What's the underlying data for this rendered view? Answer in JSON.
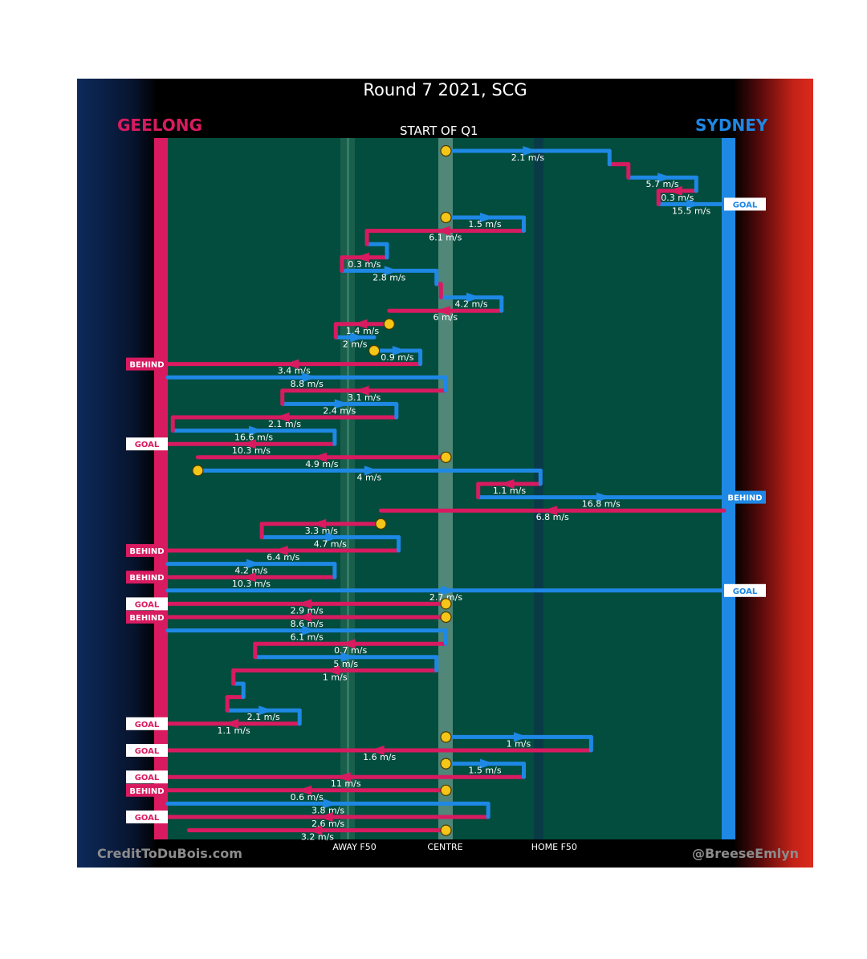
{
  "header": {
    "title": "Round 7 2021, SCG",
    "team_left": "GEELONG",
    "team_right": "SYDNEY",
    "quarter_label": "START OF Q1"
  },
  "footer": {
    "left": "CreditToDuBois.com",
    "right": "@BreeseEmlyn"
  },
  "colors": {
    "geelong": "#d81b60",
    "sydney": "#1e88e5",
    "field": "#034d3e",
    "centre_bounce": "#f5c518"
  },
  "chart_data": {
    "type": "line",
    "title": "Round 7 2021, SCG",
    "x_axis_labels": [
      "AWAY F50",
      "CENTRE",
      "HOME F50"
    ],
    "x_range": [
      0,
      1
    ],
    "y_direction": "chain index, top to bottom",
    "chains": [
      {
        "id": 1,
        "start_centre": true,
        "result": "GOAL",
        "result_team": "sydney",
        "segments": [
          {
            "team": "sydney",
            "from": 0.5,
            "to": 0.794,
            "speed": "2.1 m/s"
          },
          {
            "team": "geelong",
            "from": 0.794,
            "to": 0.828,
            "speed": ""
          },
          {
            "team": "sydney",
            "from": 0.828,
            "to": 0.95,
            "speed": "5.7 m/s"
          },
          {
            "team": "geelong",
            "from": 0.95,
            "to": 0.882,
            "speed": "0.3 m/s"
          },
          {
            "team": "sydney",
            "from": 0.882,
            "to": 1.0,
            "speed": "15.5 m/s"
          }
        ]
      },
      {
        "id": 2,
        "start_centre": true,
        "result": "",
        "result_team": "",
        "segments": [
          {
            "team": "sydney",
            "from": 0.5,
            "to": 0.64,
            "speed": "1.5 m/s"
          },
          {
            "team": "geelong",
            "from": 0.64,
            "to": 0.358,
            "speed": "6.1 m/s"
          },
          {
            "team": "sydney",
            "from": 0.358,
            "to": 0.394,
            "speed": ""
          },
          {
            "team": "geelong",
            "from": 0.394,
            "to": 0.313,
            "speed": "0.3 m/s"
          },
          {
            "team": "sydney",
            "from": 0.313,
            "to": 0.483,
            "speed": "2.8 m/s"
          },
          {
            "team": "geelong",
            "from": 0.483,
            "to": 0.491,
            "speed": ""
          },
          {
            "team": "sydney",
            "from": 0.491,
            "to": 0.6,
            "speed": "4.2 m/s"
          },
          {
            "team": "geelong",
            "from": 0.6,
            "to": 0.398,
            "speed": "6 m/s"
          }
        ]
      },
      {
        "id": 3,
        "start_centre": true,
        "result": "",
        "result_team": "",
        "segments": [
          {
            "team": "geelong",
            "from": 0.398,
            "to": 0.302,
            "speed": "1.4 m/s"
          },
          {
            "team": "sydney",
            "from": 0.302,
            "to": 0.371,
            "speed": "2 m/s"
          }
        ]
      },
      {
        "id": 4,
        "start_centre": true,
        "result": "BEHIND",
        "result_team": "geelong",
        "segments": [
          {
            "team": "sydney",
            "from": 0.371,
            "to": 0.454,
            "speed": "0.9 m/s"
          },
          {
            "team": "geelong",
            "from": 0.454,
            "to": 0.0,
            "speed": "3.4 m/s"
          }
        ]
      },
      {
        "id": 5,
        "start_centre": false,
        "result": "GOAL",
        "result_team": "geelong",
        "segments": [
          {
            "team": "sydney",
            "from": 0.0,
            "to": 0.5,
            "speed": "8.8 m/s"
          },
          {
            "team": "geelong",
            "from": 0.5,
            "to": 0.206,
            "speed": "3.1 m/s"
          },
          {
            "team": "sydney",
            "from": 0.206,
            "to": 0.411,
            "speed": "2.4 m/s"
          },
          {
            "team": "geelong",
            "from": 0.411,
            "to": 0.009,
            "speed": "2.1 m/s"
          },
          {
            "team": "sydney",
            "from": 0.009,
            "to": 0.3,
            "speed": "16.6 m/s"
          },
          {
            "team": "geelong",
            "from": 0.3,
            "to": 0.0,
            "speed": "10.3 m/s"
          }
        ]
      },
      {
        "id": 6,
        "start_centre": true,
        "result": "",
        "result_team": "",
        "segments": [
          {
            "team": "geelong",
            "from": 0.5,
            "to": 0.054,
            "speed": "4.9 m/s"
          }
        ]
      },
      {
        "id": 7,
        "start_centre": true,
        "result": "BEHIND",
        "result_team": "sydney",
        "segments": [
          {
            "team": "sydney",
            "from": 0.054,
            "to": 0.67,
            "speed": "4 m/s"
          },
          {
            "team": "geelong",
            "from": 0.67,
            "to": 0.558,
            "speed": "1.1 m/s"
          },
          {
            "team": "sydney",
            "from": 0.558,
            "to": 1.0,
            "speed": "16.8 m/s"
          }
        ]
      },
      {
        "id": 8,
        "start_centre": false,
        "result": "",
        "result_team": "",
        "segments": [
          {
            "team": "geelong",
            "from": 1.0,
            "to": 0.383,
            "speed": "6.8 m/s"
          }
        ]
      },
      {
        "id": 9,
        "start_centre": true,
        "result": "BEHIND",
        "result_team": "geelong",
        "segments": [
          {
            "team": "geelong",
            "from": 0.383,
            "to": 0.169,
            "speed": "3.3 m/s"
          },
          {
            "team": "sydney",
            "from": 0.169,
            "to": 0.415,
            "speed": "4.7 m/s"
          },
          {
            "team": "geelong",
            "from": 0.415,
            "to": 0.0,
            "speed": "6.4 m/s"
          }
        ]
      },
      {
        "id": 10,
        "start_centre": false,
        "result": "BEHIND",
        "result_team": "geelong",
        "segments": [
          {
            "team": "sydney",
            "from": 0.0,
            "to": 0.3,
            "speed": "4.2 m/s"
          },
          {
            "team": "geelong",
            "from": 0.3,
            "to": 0.0,
            "speed": "10.3 m/s"
          }
        ]
      },
      {
        "id": 11,
        "start_centre": false,
        "result": "GOAL",
        "result_team": "sydney",
        "segments": [
          {
            "team": "sydney",
            "from": 0.0,
            "to": 1.0,
            "speed": "2.7 m/s"
          }
        ]
      },
      {
        "id": 12,
        "start_centre": true,
        "result": "GOAL",
        "result_team": "geelong",
        "segments": [
          {
            "team": "geelong",
            "from": 0.5,
            "to": 0.0,
            "speed": "2.9 m/s"
          }
        ]
      },
      {
        "id": 13,
        "start_centre": true,
        "result": "BEHIND",
        "result_team": "geelong",
        "segments": [
          {
            "team": "geelong",
            "from": 0.5,
            "to": 0.0,
            "speed": "8.6 m/s"
          }
        ]
      },
      {
        "id": 14,
        "start_centre": false,
        "result": "GOAL",
        "result_team": "geelong",
        "segments": [
          {
            "team": "sydney",
            "from": 0.0,
            "to": 0.5,
            "speed": "6.1 m/s"
          },
          {
            "team": "geelong",
            "from": 0.5,
            "to": 0.157,
            "speed": "0.7 m/s"
          },
          {
            "team": "sydney",
            "from": 0.157,
            "to": 0.483,
            "speed": "5 m/s"
          },
          {
            "team": "geelong",
            "from": 0.483,
            "to": 0.118,
            "speed": "1 m/s"
          },
          {
            "team": "sydney",
            "from": 0.118,
            "to": 0.136,
            "speed": ""
          },
          {
            "team": "geelong",
            "from": 0.136,
            "to": 0.107,
            "speed": ""
          },
          {
            "team": "sydney",
            "from": 0.107,
            "to": 0.237,
            "speed": "2.1 m/s"
          },
          {
            "team": "geelong",
            "from": 0.237,
            "to": 0.0,
            "speed": "1.1 m/s"
          }
        ]
      },
      {
        "id": 15,
        "start_centre": true,
        "result": "GOAL",
        "result_team": "geelong",
        "segments": [
          {
            "team": "sydney",
            "from": 0.5,
            "to": 0.761,
            "speed": "1 m/s"
          },
          {
            "team": "geelong",
            "from": 0.761,
            "to": 0.0,
            "speed": "1.6 m/s"
          }
        ]
      },
      {
        "id": 16,
        "start_centre": true,
        "result": "GOAL",
        "result_team": "geelong",
        "segments": [
          {
            "team": "sydney",
            "from": 0.5,
            "to": 0.64,
            "speed": "1.5 m/s"
          },
          {
            "team": "geelong",
            "from": 0.64,
            "to": 0.0,
            "speed": "11 m/s"
          }
        ]
      },
      {
        "id": 17,
        "start_centre": true,
        "result": "BEHIND",
        "result_team": "geelong",
        "segments": [
          {
            "team": "geelong",
            "from": 0.5,
            "to": 0.0,
            "speed": "0.6 m/s"
          }
        ]
      },
      {
        "id": 18,
        "start_centre": false,
        "result": "GOAL",
        "result_team": "geelong",
        "segments": [
          {
            "team": "sydney",
            "from": 0.0,
            "to": 0.576,
            "speed": "3.8 m/s"
          },
          {
            "team": "geelong",
            "from": 0.576,
            "to": 0.0,
            "speed": "2.6 m/s"
          }
        ]
      },
      {
        "id": 19,
        "start_centre": true,
        "result": "",
        "result_team": "",
        "segments": [
          {
            "team": "geelong",
            "from": 0.5,
            "to": 0.038,
            "speed": "3.2 m/s"
          }
        ]
      }
    ]
  }
}
